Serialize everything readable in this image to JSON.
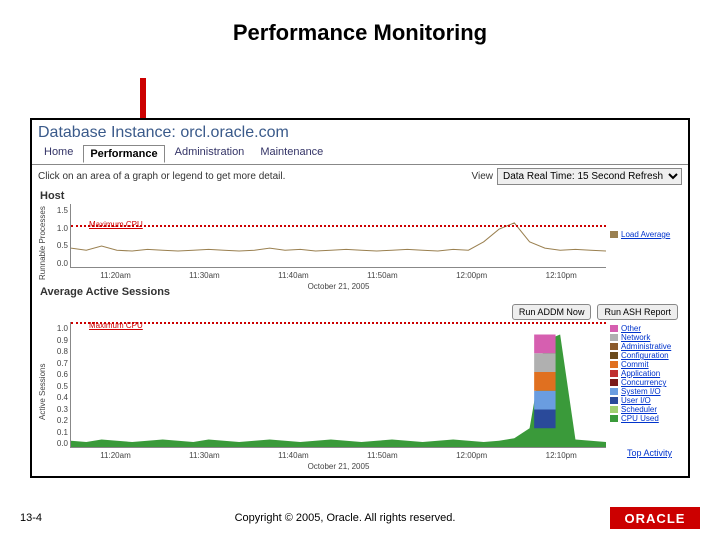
{
  "slide": {
    "title": "Performance Monitoring",
    "page": "13-4",
    "copyright": "Copyright © 2005, Oracle. All rights reserved.",
    "logo": "ORACLE"
  },
  "db": {
    "title": "Database Instance: orcl.oracle.com"
  },
  "tabs": {
    "home": "Home",
    "performance": "Performance",
    "admin": "Administration",
    "maint": "Maintenance"
  },
  "subbar": {
    "tip": "Click on an area of a graph or legend to get more detail.",
    "view_label": "View",
    "view_value": "Data Real Time: 15 Second Refresh"
  },
  "host_chart": {
    "label": "Host",
    "ylabel": "Runnable Processes",
    "maxcpu": "Maximum CPU",
    "yticks": [
      "1.5",
      "1.0",
      "0.5",
      "0.0"
    ],
    "xticks": [
      "11:20am",
      "11:30am",
      "11:40am",
      "11:50am",
      "12:00pm",
      "12:10pm"
    ],
    "date": "October 21, 2005",
    "legend_label": "Load Average",
    "line_color": "#9a8050",
    "line_points": [
      0.45,
      0.4,
      0.5,
      0.4,
      0.38,
      0.42,
      0.4,
      0.38,
      0.4,
      0.42,
      0.4,
      0.38,
      0.4,
      0.45,
      0.4,
      0.42,
      0.38,
      0.4,
      0.42,
      0.4,
      0.38,
      0.4,
      0.42,
      0.4,
      0.38,
      0.42,
      0.4,
      0.6,
      0.9,
      1.05,
      0.6,
      0.45,
      0.4,
      0.42,
      0.4,
      0.38
    ],
    "ymax": 1.5
  },
  "sessions_chart": {
    "label": "Average Active Sessions",
    "ylabel": "Active Sessions",
    "maxcpu": "Maximum CPU",
    "yticks": [
      "1.0",
      "0.9",
      "0.8",
      "0.7",
      "0.6",
      "0.5",
      "0.4",
      "0.3",
      "0.2",
      "0.1",
      "0.0"
    ],
    "xticks": [
      "11:20am",
      "11:30am",
      "11:40am",
      "11:50am",
      "12:00pm",
      "12:10pm"
    ],
    "date": "October 21, 2005",
    "ymax": 1.0,
    "btn1": "Run ADDM Now",
    "btn2": "Run ASH Report",
    "top_activity": "Top Activity",
    "legend": [
      {
        "label": "Other",
        "color": "#d65fb0"
      },
      {
        "label": "Network",
        "color": "#b0b0b0"
      },
      {
        "label": "Administrative",
        "color": "#8b5a2b"
      },
      {
        "label": "Configuration",
        "color": "#6b4a1b"
      },
      {
        "label": "Commit",
        "color": "#e07020"
      },
      {
        "label": "Application",
        "color": "#c03030"
      },
      {
        "label": "Concurrency",
        "color": "#7a1a1a"
      },
      {
        "label": "System I/O",
        "color": "#6a9de0"
      },
      {
        "label": "User I/O",
        "color": "#2a4a9a"
      },
      {
        "label": "Scheduler",
        "color": "#a0d070"
      },
      {
        "label": "CPU Used",
        "color": "#3a9a3a"
      }
    ],
    "base_points": [
      0.05,
      0.04,
      0.06,
      0.05,
      0.04,
      0.05,
      0.06,
      0.05,
      0.04,
      0.06,
      0.05,
      0.04,
      0.05,
      0.06,
      0.05,
      0.04,
      0.05,
      0.06,
      0.05,
      0.04,
      0.05,
      0.06,
      0.05,
      0.04,
      0.05,
      0.06,
      0.05,
      0.04,
      0.05,
      0.07,
      0.15,
      0.85,
      0.9,
      0.06,
      0.05,
      0.04
    ],
    "spike_idx": 31,
    "spike_colors": [
      "#3a9a3a",
      "#2a4a9a",
      "#6a9de0",
      "#e07020",
      "#b0b0b0",
      "#d65fb0"
    ]
  }
}
